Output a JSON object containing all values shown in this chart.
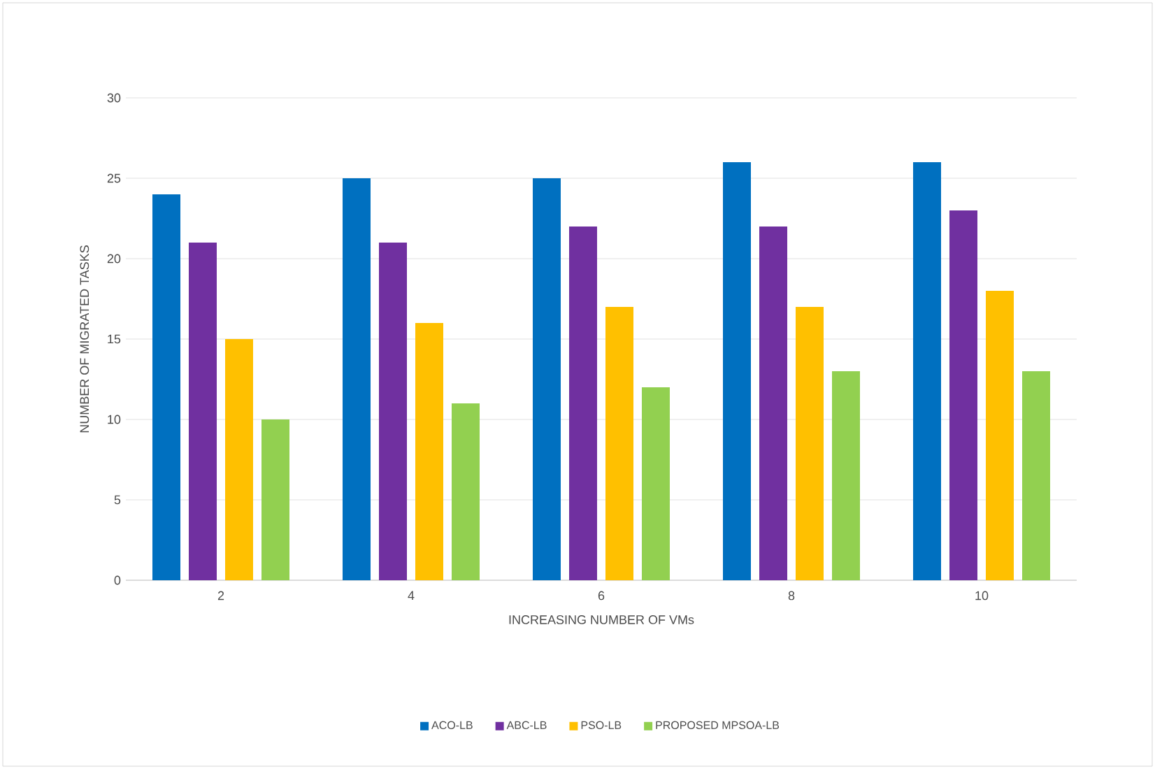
{
  "chart_data": {
    "type": "bar",
    "xlabel": "INCREASING NUMBER OF VMs",
    "ylabel": "NUMBER OF MIGRATED TASKS",
    "categories": [
      "2",
      "4",
      "6",
      "8",
      "10"
    ],
    "series": [
      {
        "name": "ACO-LB",
        "color": "#0070c0",
        "values": [
          24,
          25,
          25,
          26,
          26
        ]
      },
      {
        "name": "ABC-LB",
        "color": "#7030a0",
        "values": [
          21,
          21,
          22,
          22,
          23
        ]
      },
      {
        "name": "PSO-LB",
        "color": "#ffc000",
        "values": [
          15,
          16,
          17,
          17,
          18
        ]
      },
      {
        "name": "PROPOSED MPSOA-LB",
        "color": "#92d050",
        "values": [
          10,
          11,
          12,
          13,
          13
        ]
      }
    ],
    "ylim": [
      0,
      30
    ],
    "yticks": [
      0,
      5,
      10,
      15,
      20,
      25,
      30
    ],
    "grid": "y",
    "legend": "bottom"
  }
}
